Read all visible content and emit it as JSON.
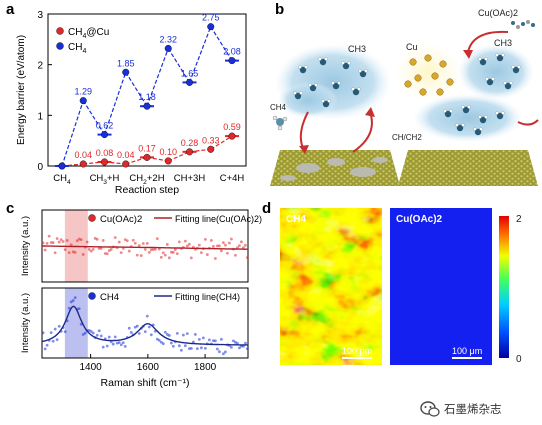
{
  "panels": {
    "a": "a",
    "b": "b",
    "c": "c",
    "d": "d"
  },
  "panel_a": {
    "chart_data": {
      "type": "line",
      "ylabel": "Energy barrier (eV/atom)",
      "xlabel": "Reaction step",
      "ylim": [
        0,
        3
      ],
      "yticks": [
        0,
        1,
        2,
        3
      ],
      "categories": [
        "CH4",
        "CH3+H",
        "CH2+2H",
        "CH+3H",
        "C+4H"
      ],
      "category_sub": [
        {
          "base": "CH",
          "sub": "4",
          "tail": ""
        },
        {
          "base": "CH",
          "sub": "3",
          "tail": "+H"
        },
        {
          "base": "CH",
          "sub": "2",
          "tail": "+2H"
        },
        {
          "base": "CH+3H",
          "sub": "",
          "tail": ""
        },
        {
          "base": "C+4H",
          "sub": "",
          "tail": ""
        }
      ],
      "legend_placement": "top-left",
      "series": [
        {
          "name": "CH4@Cu",
          "legend_base": "CH",
          "legend_sub": "4",
          "legend_tail": "@Cu",
          "color": "#e0282a",
          "points": [
            [
              0,
              0.0
            ],
            [
              0.5,
              0.04
            ],
            [
              1.0,
              0.08
            ],
            [
              1.5,
              0.04
            ],
            [
              2.0,
              0.17
            ],
            [
              2.5,
              0.1
            ],
            [
              3.0,
              0.28
            ],
            [
              3.5,
              0.33
            ],
            [
              4.0,
              0.59
            ]
          ],
          "labels": [
            "",
            "0.04",
            "0.08",
            "0.04",
            "0.17",
            "0.10",
            "0.28",
            "0.33",
            "0.59"
          ]
        },
        {
          "name": "CH4",
          "legend_base": "CH",
          "legend_sub": "4",
          "legend_tail": "",
          "color": "#1a2fd6",
          "points": [
            [
              0,
              0.0
            ],
            [
              0.5,
              1.29
            ],
            [
              1.0,
              0.62
            ],
            [
              1.5,
              1.85
            ],
            [
              2.0,
              1.18
            ],
            [
              2.5,
              2.32
            ],
            [
              3.0,
              1.65
            ],
            [
              3.5,
              2.75
            ],
            [
              4.0,
              2.08
            ]
          ],
          "labels": [
            "",
            "1.29",
            "0.62",
            "1.85",
            "1.18",
            "2.32",
            "1.65",
            "2.75",
            "2.08"
          ]
        }
      ]
    }
  },
  "panel_b": {
    "left_labels": {
      "ch3": "CH3",
      "ch4": "CH4"
    },
    "right_labels": {
      "cuoac": "Cu(OAc)2",
      "cu": "Cu",
      "ch3": "CH3",
      "chch2": "CH/CH2"
    }
  },
  "panel_c": {
    "chart_data": {
      "type": "line",
      "xlabel": "Raman shift (cm⁻¹)",
      "xlim": [
        1230,
        1950
      ],
      "xticks": [
        1400,
        1600,
        1800
      ],
      "subplots": [
        {
          "ylabel": "Intensity (a.u.)",
          "legend_point": "Cu(OAc)2",
          "legend_line": "Fitting line(Cu(OAc)2)",
          "highlight": [
            1310,
            1390
          ],
          "highlight_color": "#f4b6b8",
          "point_color": "#e0282a",
          "line_color": "#b0202a",
          "fit": [
            [
              1230,
              0.5
            ],
            [
              1400,
              0.49
            ],
            [
              1600,
              0.48
            ],
            [
              1800,
              0.465
            ],
            [
              1950,
              0.455
            ]
          ]
        },
        {
          "ylabel": "Intensity (a.u.)",
          "legend_point": "CH4",
          "legend_line": "Fitting line(CH4)",
          "highlight": [
            1310,
            1390
          ],
          "highlight_color": "#aab0ee",
          "point_color": "#1a2fd6",
          "line_color": "#1b2a8a",
          "peaks": [
            {
              "center": 1340,
              "height": 0.55,
              "width": 35
            },
            {
              "center": 1600,
              "height": 0.3,
              "width": 45
            }
          ]
        }
      ]
    }
  },
  "panel_d": {
    "maps": [
      {
        "label": "CH4",
        "scalebar": "100 μm"
      },
      {
        "label": "Cu(OAc)2",
        "scalebar": "100 μm"
      }
    ],
    "colorbar": {
      "max": "2",
      "min": "0"
    }
  },
  "watermark": {
    "text": "石墨烯杂志"
  }
}
